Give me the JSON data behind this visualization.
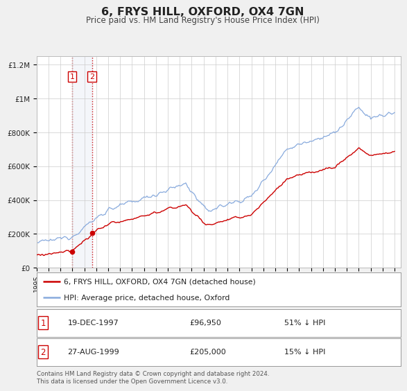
{
  "title": "6, FRYS HILL, OXFORD, OX4 7GN",
  "subtitle": "Price paid vs. HM Land Registry's House Price Index (HPI)",
  "property_label": "6, FRYS HILL, OXFORD, OX4 7GN (detached house)",
  "hpi_label": "HPI: Average price, detached house, Oxford",
  "sale1_date": "19-DEC-1997",
  "sale1_price": "£96,950",
  "sale1_hpi": "51% ↓ HPI",
  "sale2_date": "27-AUG-1999",
  "sale2_price": "£205,000",
  "sale2_hpi": "15% ↓ HPI",
  "footer": "Contains HM Land Registry data © Crown copyright and database right 2024.\nThis data is licensed under the Open Government Licence v3.0.",
  "sale1_year": 1997.97,
  "sale1_value": 96950,
  "sale2_year": 1999.65,
  "sale2_value": 205000,
  "property_color": "#cc0000",
  "hpi_color": "#88aadd",
  "background_color": "#f0f0f0",
  "plot_bg_color": "#ffffff",
  "ylim": [
    0,
    1250000
  ],
  "xlim_start": 1995.0,
  "xlim_end": 2025.5,
  "yticks": [
    0,
    200000,
    400000,
    600000,
    800000,
    1000000,
    1200000
  ],
  "ylabels": [
    "£0",
    "£200K",
    "£400K",
    "£600K",
    "£800K",
    "£1M",
    "£1.2M"
  ]
}
